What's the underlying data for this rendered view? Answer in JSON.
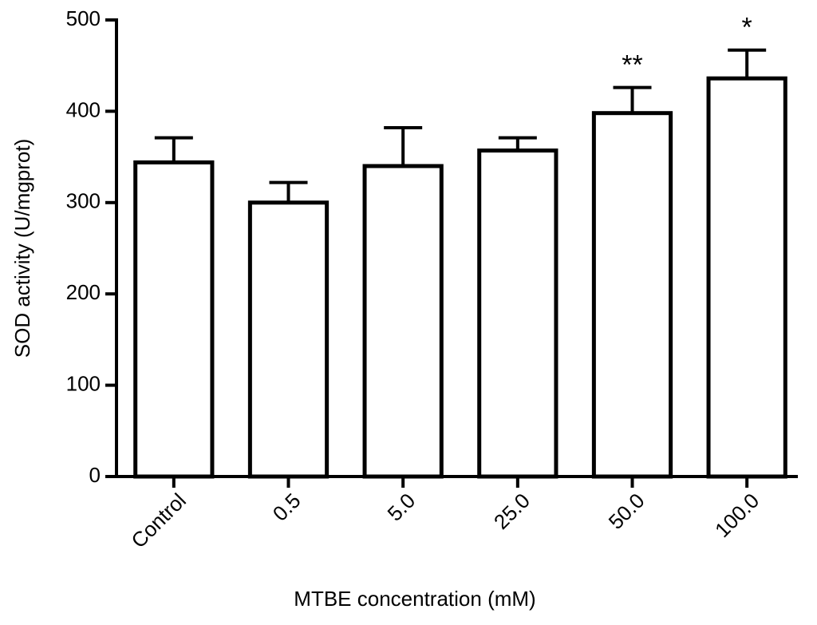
{
  "chart_data": {
    "type": "bar",
    "x_label": "MTBE concentration (mM)",
    "y_label": "SOD activity (U/mgprot)",
    "categories": [
      "Control",
      "0.5",
      "5.0",
      "25.0",
      "50.0",
      "100.0"
    ],
    "values": [
      344,
      300,
      340,
      357,
      398,
      436
    ],
    "errors": [
      27,
      22,
      42,
      14,
      28,
      31
    ],
    "color": "#ffffff",
    "ylim": [
      0,
      500
    ],
    "yticks": [
      0,
      100,
      200,
      300,
      400,
      500
    ],
    "annotations": [
      {
        "text": "**",
        "x": "50.0"
      },
      {
        "text": "*",
        "x": "100.0"
      }
    ],
    "grid": false
  }
}
